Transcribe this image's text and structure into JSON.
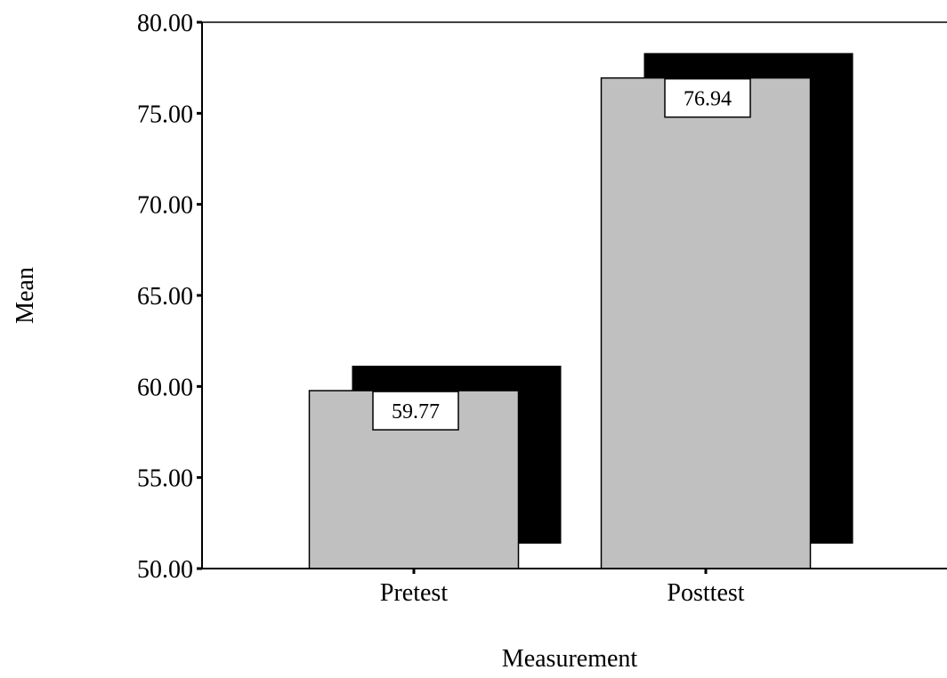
{
  "chart_data": {
    "type": "bar",
    "title": "",
    "xlabel": "Measurement",
    "ylabel": "Mean",
    "categories": [
      "Pretest",
      "Posttest"
    ],
    "values": [
      59.77,
      76.94
    ],
    "data_labels": [
      "59.77",
      "76.94"
    ],
    "ylim": [
      50,
      80
    ],
    "yticks": [
      50,
      55,
      60,
      65,
      70,
      75,
      80
    ],
    "ytick_labels": [
      "50.00",
      "55.00",
      "60.00",
      "65.00",
      "70.00",
      "75.00",
      "80.00"
    ],
    "grid": false,
    "legend": "none",
    "style": "3d-shadow",
    "colors": {
      "bar_fill": "#c0c0c0",
      "bar_shadow": "#000000",
      "bar_outline": "#000000",
      "label_box": "#ffffff",
      "axis": "#000000",
      "background": "#ffffff"
    }
  }
}
